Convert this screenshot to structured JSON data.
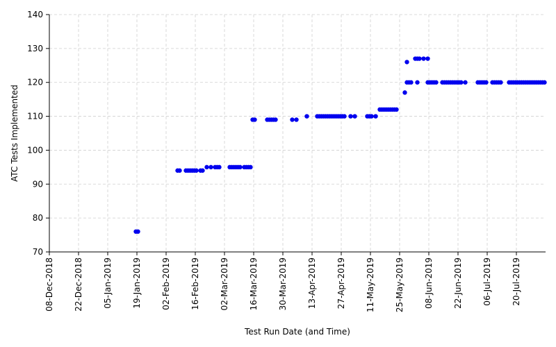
{
  "chart_data": {
    "type": "scatter",
    "title": "",
    "xlabel": "Test Run Date (and Time)",
    "ylabel": "ATC Tests Implemented",
    "x_type": "date",
    "xlim": [
      "2018-12-08",
      "2019-08-03"
    ],
    "ylim": [
      70,
      140
    ],
    "x_ticks": [
      "08-Dec-2018",
      "22-Dec-2018",
      "05-Jan-2019",
      "19-Jan-2019",
      "02-Feb-2019",
      "16-Feb-2019",
      "02-Mar-2019",
      "16-Mar-2019",
      "30-Mar-2019",
      "13-Apr-2019",
      "27-Apr-2019",
      "11-May-2019",
      "25-May-2019",
      "08-Jun-2019",
      "22-Jun-2019",
      "06-Jul-2019",
      "20-Jul-2019"
    ],
    "y_ticks": [
      "70",
      "80",
      "90",
      "100",
      "110",
      "120",
      "130",
      "140"
    ],
    "grid": true,
    "marker_color": "#0000ee",
    "points": [
      {
        "x": "2019-01-18",
        "y": 76
      },
      {
        "x": "2019-01-19",
        "y": 76
      },
      {
        "x": "2019-02-07",
        "y": 94
      },
      {
        "x": "2019-02-08",
        "y": 94
      },
      {
        "x": "2019-02-11",
        "y": 94
      },
      {
        "x": "2019-02-12",
        "y": 94
      },
      {
        "x": "2019-02-13",
        "y": 94
      },
      {
        "x": "2019-02-14",
        "y": 94
      },
      {
        "x": "2019-02-15",
        "y": 94
      },
      {
        "x": "2019-02-16",
        "y": 94
      },
      {
        "x": "2019-02-18",
        "y": 94
      },
      {
        "x": "2019-02-19",
        "y": 94
      },
      {
        "x": "2019-02-21",
        "y": 95
      },
      {
        "x": "2019-02-23",
        "y": 95
      },
      {
        "x": "2019-02-25",
        "y": 95
      },
      {
        "x": "2019-02-26",
        "y": 95
      },
      {
        "x": "2019-02-27",
        "y": 95
      },
      {
        "x": "2019-03-04",
        "y": 95
      },
      {
        "x": "2019-03-05",
        "y": 95
      },
      {
        "x": "2019-03-06",
        "y": 95
      },
      {
        "x": "2019-03-07",
        "y": 95
      },
      {
        "x": "2019-03-08",
        "y": 95
      },
      {
        "x": "2019-03-09",
        "y": 95
      },
      {
        "x": "2019-03-11",
        "y": 95
      },
      {
        "x": "2019-03-12",
        "y": 95
      },
      {
        "x": "2019-03-13",
        "y": 95
      },
      {
        "x": "2019-03-14",
        "y": 95
      },
      {
        "x": "2019-03-15",
        "y": 109
      },
      {
        "x": "2019-03-16",
        "y": 109
      },
      {
        "x": "2019-03-22",
        "y": 109
      },
      {
        "x": "2019-03-23",
        "y": 109
      },
      {
        "x": "2019-03-24",
        "y": 109
      },
      {
        "x": "2019-03-25",
        "y": 109
      },
      {
        "x": "2019-03-26",
        "y": 109
      },
      {
        "x": "2019-04-03",
        "y": 109
      },
      {
        "x": "2019-04-05",
        "y": 109
      },
      {
        "x": "2019-04-10",
        "y": 110
      },
      {
        "x": "2019-04-15",
        "y": 110
      },
      {
        "x": "2019-04-16",
        "y": 110
      },
      {
        "x": "2019-04-17",
        "y": 110
      },
      {
        "x": "2019-04-18",
        "y": 110
      },
      {
        "x": "2019-04-19",
        "y": 110
      },
      {
        "x": "2019-04-20",
        "y": 110
      },
      {
        "x": "2019-04-21",
        "y": 110
      },
      {
        "x": "2019-04-22",
        "y": 110
      },
      {
        "x": "2019-04-23",
        "y": 110
      },
      {
        "x": "2019-04-24",
        "y": 110
      },
      {
        "x": "2019-04-25",
        "y": 110
      },
      {
        "x": "2019-04-26",
        "y": 110
      },
      {
        "x": "2019-04-27",
        "y": 110
      },
      {
        "x": "2019-04-28",
        "y": 110
      },
      {
        "x": "2019-05-01",
        "y": 110
      },
      {
        "x": "2019-05-03",
        "y": 110
      },
      {
        "x": "2019-05-09",
        "y": 110
      },
      {
        "x": "2019-05-10",
        "y": 110
      },
      {
        "x": "2019-05-11",
        "y": 110
      },
      {
        "x": "2019-05-13",
        "y": 110
      },
      {
        "x": "2019-05-15",
        "y": 112
      },
      {
        "x": "2019-05-16",
        "y": 112
      },
      {
        "x": "2019-05-17",
        "y": 112
      },
      {
        "x": "2019-05-18",
        "y": 112
      },
      {
        "x": "2019-05-19",
        "y": 112
      },
      {
        "x": "2019-05-20",
        "y": 112
      },
      {
        "x": "2019-05-21",
        "y": 112
      },
      {
        "x": "2019-05-22",
        "y": 112
      },
      {
        "x": "2019-05-23",
        "y": 112
      },
      {
        "x": "2019-05-27",
        "y": 117
      },
      {
        "x": "2019-05-28",
        "y": 120
      },
      {
        "x": "2019-05-28",
        "y": 126
      },
      {
        "x": "2019-05-29",
        "y": 120
      },
      {
        "x": "2019-05-30",
        "y": 120
      },
      {
        "x": "2019-06-01",
        "y": 127
      },
      {
        "x": "2019-06-02",
        "y": 127
      },
      {
        "x": "2019-06-02",
        "y": 120
      },
      {
        "x": "2019-06-03",
        "y": 127
      },
      {
        "x": "2019-06-05",
        "y": 127
      },
      {
        "x": "2019-06-07",
        "y": 127
      },
      {
        "x": "2019-06-07",
        "y": 120
      },
      {
        "x": "2019-06-08",
        "y": 120
      },
      {
        "x": "2019-06-09",
        "y": 120
      },
      {
        "x": "2019-06-10",
        "y": 120
      },
      {
        "x": "2019-06-11",
        "y": 120
      },
      {
        "x": "2019-06-14",
        "y": 120
      },
      {
        "x": "2019-06-15",
        "y": 120
      },
      {
        "x": "2019-06-16",
        "y": 120
      },
      {
        "x": "2019-06-17",
        "y": 120
      },
      {
        "x": "2019-06-18",
        "y": 120
      },
      {
        "x": "2019-06-19",
        "y": 120
      },
      {
        "x": "2019-06-20",
        "y": 120
      },
      {
        "x": "2019-06-21",
        "y": 120
      },
      {
        "x": "2019-06-22",
        "y": 120
      },
      {
        "x": "2019-06-23",
        "y": 120
      },
      {
        "x": "2019-06-25",
        "y": 120
      },
      {
        "x": "2019-07-01",
        "y": 120
      },
      {
        "x": "2019-07-02",
        "y": 120
      },
      {
        "x": "2019-07-03",
        "y": 120
      },
      {
        "x": "2019-07-04",
        "y": 120
      },
      {
        "x": "2019-07-05",
        "y": 120
      },
      {
        "x": "2019-07-08",
        "y": 120
      },
      {
        "x": "2019-07-09",
        "y": 120
      },
      {
        "x": "2019-07-10",
        "y": 120
      },
      {
        "x": "2019-07-11",
        "y": 120
      },
      {
        "x": "2019-07-12",
        "y": 120
      },
      {
        "x": "2019-07-16",
        "y": 120
      },
      {
        "x": "2019-07-17",
        "y": 120
      },
      {
        "x": "2019-07-18",
        "y": 120
      },
      {
        "x": "2019-07-19",
        "y": 120
      },
      {
        "x": "2019-07-20",
        "y": 120
      },
      {
        "x": "2019-07-21",
        "y": 120
      },
      {
        "x": "2019-07-22",
        "y": 120
      },
      {
        "x": "2019-07-23",
        "y": 120
      },
      {
        "x": "2019-07-24",
        "y": 120
      },
      {
        "x": "2019-07-25",
        "y": 120
      },
      {
        "x": "2019-07-26",
        "y": 120
      },
      {
        "x": "2019-07-27",
        "y": 120
      },
      {
        "x": "2019-07-28",
        "y": 120
      },
      {
        "x": "2019-07-29",
        "y": 120
      },
      {
        "x": "2019-07-30",
        "y": 120
      },
      {
        "x": "2019-07-31",
        "y": 120
      },
      {
        "x": "2019-08-01",
        "y": 120
      },
      {
        "x": "2019-08-02",
        "y": 120
      }
    ]
  }
}
